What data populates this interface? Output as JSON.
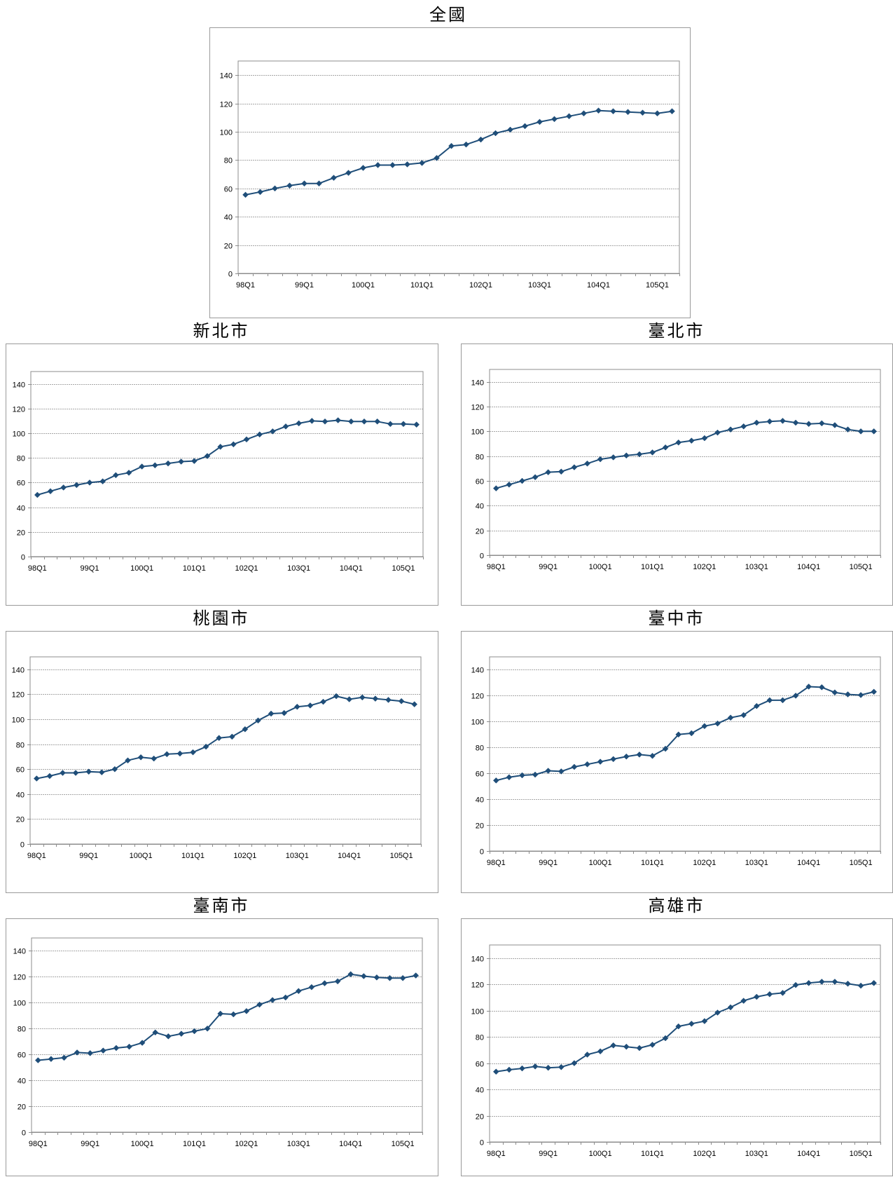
{
  "chart_data": [
    {
      "type": "line",
      "title": "全國",
      "categories": [
        "98Q1",
        "98Q2",
        "98Q3",
        "98Q4",
        "99Q1",
        "99Q2",
        "99Q3",
        "99Q4",
        "100Q1",
        "100Q2",
        "100Q3",
        "100Q4",
        "101Q1",
        "101Q2",
        "101Q3",
        "101Q4",
        "102Q1",
        "102Q2",
        "102Q3",
        "102Q4",
        "103Q1",
        "103Q2",
        "103Q3",
        "103Q4",
        "104Q1",
        "104Q2",
        "104Q3",
        "104Q4",
        "105Q1",
        "105Q2"
      ],
      "x_tick_labels": [
        "98Q1",
        "99Q1",
        "100Q1",
        "101Q1",
        "102Q1",
        "103Q1",
        "104Q1",
        "105Q1"
      ],
      "values": [
        55.5,
        57.5,
        60,
        62,
        63.5,
        63.5,
        67.5,
        71,
        74.5,
        76.5,
        76.5,
        77,
        78,
        81.5,
        90,
        91,
        94.5,
        99,
        101.5,
        104,
        107,
        109,
        111,
        113,
        115,
        114.5,
        114,
        113.5,
        113,
        114.5
      ],
      "ylim": [
        0,
        150
      ],
      "yticks": [
        0,
        20,
        40,
        60,
        80,
        100,
        120,
        140
      ],
      "grid": true,
      "legend": "none",
      "color": "#1F4E79"
    },
    {
      "type": "line",
      "title": "新北市",
      "categories": [
        "98Q1",
        "98Q2",
        "98Q3",
        "98Q4",
        "99Q1",
        "99Q2",
        "99Q3",
        "99Q4",
        "100Q1",
        "100Q2",
        "100Q3",
        "100Q4",
        "101Q1",
        "101Q2",
        "101Q3",
        "101Q4",
        "102Q1",
        "102Q2",
        "102Q3",
        "102Q4",
        "103Q1",
        "103Q2",
        "103Q3",
        "103Q4",
        "104Q1",
        "104Q2",
        "104Q3",
        "104Q4",
        "105Q1",
        "105Q2"
      ],
      "x_tick_labels": [
        "98Q1",
        "99Q1",
        "100Q1",
        "101Q1",
        "102Q1",
        "103Q1",
        "104Q1",
        "105Q1"
      ],
      "values": [
        50,
        53,
        56,
        58,
        60,
        61,
        66,
        68,
        73,
        74,
        75.5,
        77,
        77.5,
        81.5,
        89,
        91,
        95,
        99,
        101.5,
        105.5,
        108,
        110,
        109.5,
        110.5,
        109.5,
        109.5,
        109.5,
        107.5,
        107.5,
        107
      ],
      "ylim": [
        0,
        150
      ],
      "yticks": [
        0,
        20,
        40,
        60,
        80,
        100,
        120,
        140
      ],
      "grid": true,
      "legend": "none",
      "color": "#1F4E79"
    },
    {
      "type": "line",
      "title": "臺北市",
      "categories": [
        "98Q1",
        "98Q2",
        "98Q3",
        "98Q4",
        "99Q1",
        "99Q2",
        "99Q3",
        "99Q4",
        "100Q1",
        "100Q2",
        "100Q3",
        "100Q4",
        "101Q1",
        "101Q2",
        "101Q3",
        "101Q4",
        "102Q1",
        "102Q2",
        "102Q3",
        "102Q4",
        "103Q1",
        "103Q2",
        "103Q3",
        "103Q4",
        "104Q1",
        "104Q2",
        "104Q3",
        "104Q4",
        "105Q1",
        "105Q2"
      ],
      "x_tick_labels": [
        "98Q1",
        "99Q1",
        "100Q1",
        "101Q1",
        "102Q1",
        "103Q1",
        "104Q1",
        "105Q1"
      ],
      "values": [
        54,
        57,
        60,
        63,
        67,
        67.5,
        71,
        74,
        77.5,
        79,
        80.5,
        81.5,
        83,
        87,
        91,
        92.5,
        94.5,
        99,
        101.5,
        104,
        107,
        108,
        108.5,
        107,
        106,
        106.5,
        105,
        101.5,
        100,
        100
      ],
      "ylim": [
        0,
        150
      ],
      "yticks": [
        0,
        20,
        40,
        60,
        80,
        100,
        120,
        140
      ],
      "grid": true,
      "legend": "none",
      "color": "#1F4E79"
    },
    {
      "type": "line",
      "title": "桃園市",
      "categories": [
        "98Q1",
        "98Q2",
        "98Q3",
        "98Q4",
        "99Q1",
        "99Q2",
        "99Q3",
        "99Q4",
        "100Q1",
        "100Q2",
        "100Q3",
        "100Q4",
        "101Q1",
        "101Q2",
        "101Q3",
        "101Q4",
        "102Q1",
        "102Q2",
        "102Q3",
        "102Q4",
        "103Q1",
        "103Q2",
        "103Q3",
        "103Q4",
        "104Q1",
        "104Q2",
        "104Q3",
        "104Q4",
        "105Q1",
        "105Q2"
      ],
      "x_tick_labels": [
        "98Q1",
        "99Q1",
        "100Q1",
        "101Q1",
        "102Q1",
        "103Q1",
        "104Q1",
        "105Q1"
      ],
      "values": [
        52.5,
        54.5,
        57,
        57,
        58,
        57.5,
        60,
        67,
        69.5,
        68.5,
        72,
        72.5,
        73.5,
        78,
        85,
        86,
        92,
        99,
        104.5,
        105,
        110,
        111,
        114,
        118.5,
        116,
        117.5,
        116.5,
        115.5,
        114.5,
        112
      ],
      "ylim": [
        0,
        150
      ],
      "yticks": [
        0,
        20,
        40,
        60,
        80,
        100,
        120,
        140
      ],
      "grid": true,
      "legend": "none",
      "color": "#1F4E79"
    },
    {
      "type": "line",
      "title": "臺中市",
      "categories": [
        "98Q1",
        "98Q2",
        "98Q3",
        "98Q4",
        "99Q1",
        "99Q2",
        "99Q3",
        "99Q4",
        "100Q1",
        "100Q2",
        "100Q3",
        "100Q4",
        "101Q1",
        "101Q2",
        "101Q3",
        "101Q4",
        "102Q1",
        "102Q2",
        "102Q3",
        "102Q4",
        "103Q1",
        "103Q2",
        "103Q3",
        "103Q4",
        "104Q1",
        "104Q2",
        "104Q3",
        "104Q4",
        "105Q1",
        "105Q2"
      ],
      "x_tick_labels": [
        "98Q1",
        "99Q1",
        "100Q1",
        "101Q1",
        "102Q1",
        "103Q1",
        "104Q1",
        "105Q1"
      ],
      "values": [
        54.5,
        57,
        58.5,
        59,
        62,
        61.5,
        65,
        67,
        69,
        71,
        73,
        74.5,
        73.5,
        79,
        90,
        91,
        96.5,
        98.5,
        103,
        105,
        112,
        116.5,
        116.5,
        120,
        127,
        126.5,
        122.5,
        121,
        120.5,
        123
      ],
      "ylim": [
        0,
        150
      ],
      "yticks": [
        0,
        20,
        40,
        60,
        80,
        100,
        120,
        140
      ],
      "grid": true,
      "legend": "none",
      "color": "#1F4E79"
    },
    {
      "type": "line",
      "title": "臺南市",
      "categories": [
        "98Q1",
        "98Q2",
        "98Q3",
        "98Q4",
        "99Q1",
        "99Q2",
        "99Q3",
        "99Q4",
        "100Q1",
        "100Q2",
        "100Q3",
        "100Q4",
        "101Q1",
        "101Q2",
        "101Q3",
        "101Q4",
        "102Q1",
        "102Q2",
        "102Q3",
        "102Q4",
        "103Q1",
        "103Q2",
        "103Q3",
        "103Q4",
        "104Q1",
        "104Q2",
        "104Q3",
        "104Q4",
        "105Q1",
        "105Q2"
      ],
      "x_tick_labels": [
        "98Q1",
        "99Q1",
        "100Q1",
        "101Q1",
        "102Q1",
        "103Q1",
        "104Q1",
        "105Q1"
      ],
      "values": [
        55.5,
        56.5,
        57.5,
        61.5,
        61,
        63,
        65,
        66,
        69,
        77,
        74,
        76,
        78,
        80,
        91.5,
        91,
        93.5,
        98.5,
        102,
        104,
        109,
        112,
        115,
        116.5,
        122,
        120.5,
        119.5,
        119,
        119,
        121
      ],
      "ylim": [
        0,
        150
      ],
      "yticks": [
        0,
        20,
        40,
        60,
        80,
        100,
        120,
        140
      ],
      "grid": true,
      "legend": "none",
      "color": "#1F4E79"
    },
    {
      "type": "line",
      "title": "高雄市",
      "categories": [
        "98Q1",
        "98Q2",
        "98Q3",
        "98Q4",
        "99Q1",
        "99Q2",
        "99Q3",
        "99Q4",
        "100Q1",
        "100Q2",
        "100Q3",
        "100Q4",
        "101Q1",
        "101Q2",
        "101Q3",
        "101Q4",
        "102Q1",
        "102Q2",
        "102Q3",
        "102Q4",
        "103Q1",
        "103Q2",
        "103Q3",
        "103Q4",
        "104Q1",
        "104Q2",
        "104Q3",
        "104Q4",
        "105Q1",
        "105Q2"
      ],
      "x_tick_labels": [
        "98Q1",
        "99Q1",
        "100Q1",
        "101Q1",
        "102Q1",
        "103Q1",
        "104Q1",
        "105Q1"
      ],
      "values": [
        53.5,
        55,
        56,
        57.5,
        56.5,
        57,
        60,
        66.5,
        69,
        73.5,
        72.5,
        71.5,
        74,
        79,
        88,
        90,
        92,
        98.5,
        102.5,
        107.5,
        110.5,
        112.5,
        113.5,
        119.5,
        121,
        122,
        122,
        120.5,
        119,
        121
      ],
      "ylim": [
        0,
        150
      ],
      "yticks": [
        0,
        20,
        40,
        60,
        80,
        100,
        120,
        140
      ],
      "grid": true,
      "legend": "none",
      "color": "#1F4E79"
    }
  ]
}
